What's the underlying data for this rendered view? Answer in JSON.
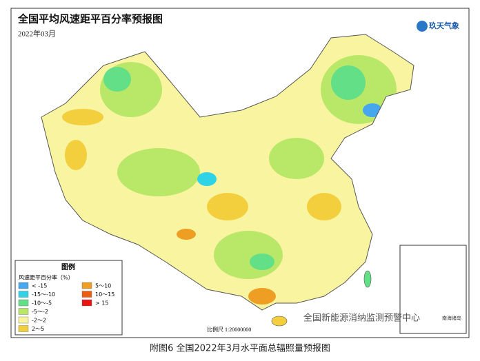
{
  "header": {
    "title": "全国平均风速距平百分率预报图",
    "subtitle": "2022年03月",
    "logo": "玖天气象"
  },
  "legend": {
    "title": "图例",
    "subtitle": "风速距平百分率（%）",
    "items": [
      {
        "label": "< -15",
        "color": "#46a6ee"
      },
      {
        "label": "-15～-10",
        "color": "#2fd3e6"
      },
      {
        "label": "-10～-5",
        "color": "#63df88"
      },
      {
        "label": "-5～-2",
        "color": "#b9e768"
      },
      {
        "label": "-2～2",
        "color": "#f8f4a0"
      },
      {
        "label": "2～5",
        "color": "#f3cf3e"
      },
      {
        "label": "5～10",
        "color": "#ee9e22"
      },
      {
        "label": "10～15",
        "color": "#ee5e12"
      },
      {
        "label": "> 15",
        "color": "#ea1414"
      }
    ]
  },
  "map": {
    "scale": "比例尺 1:20000000",
    "inset_label": "南海诸岛"
  },
  "watermark": "全国新能源消纳监测预警中心",
  "caption": "附图6  全国2022年3月水平面总辐照量预报图"
}
